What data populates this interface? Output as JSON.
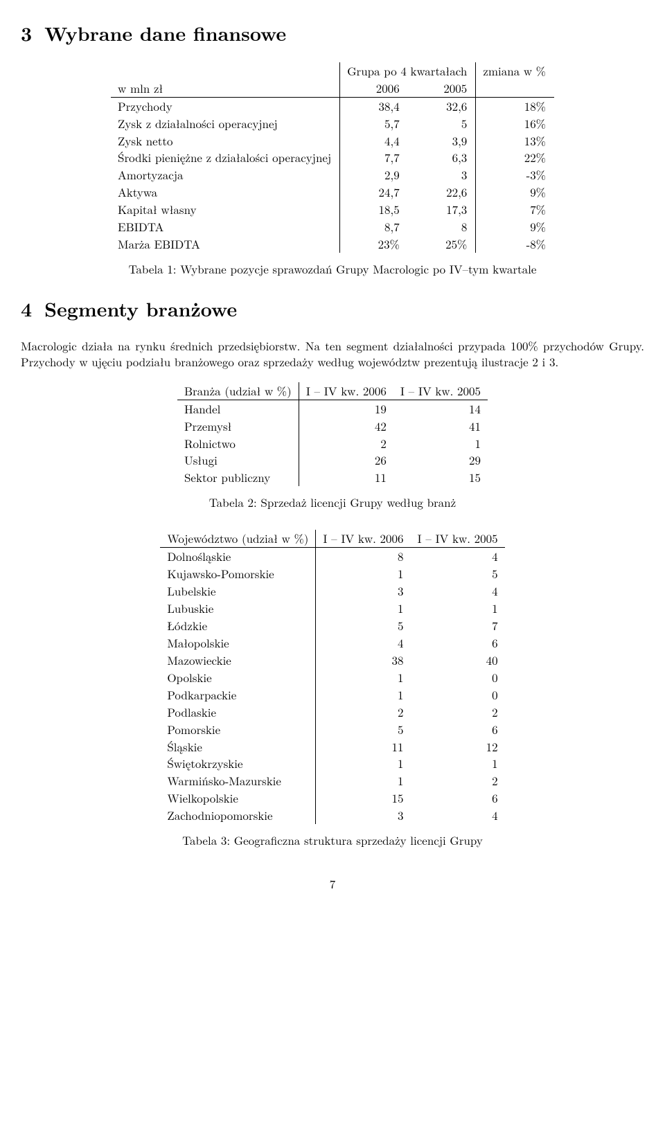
{
  "section3": {
    "number": "3",
    "title": "Wybrane dane finansowe",
    "table": {
      "header_top_left": "",
      "header_group": "Grupa po 4 kwartałach",
      "header_change": "zmiana w %",
      "header_unit": "w mln zł",
      "header_2006": "2006",
      "header_2005": "2005",
      "rows": [
        {
          "label": "Przychody",
          "v2006": "38,4",
          "v2005": "32,6",
          "chg": "18%"
        },
        {
          "label": "Zysk z działalności operacyjnej",
          "v2006": "5,7",
          "v2005": "5",
          "chg": "16%"
        },
        {
          "label": "Zysk netto",
          "v2006": "4,4",
          "v2005": "3,9",
          "chg": "13%"
        },
        {
          "label": "Środki pieniężne z działalości operacyjnej",
          "v2006": "7,7",
          "v2005": "6,3",
          "chg": "22%"
        },
        {
          "label": "Amortyzacja",
          "v2006": "2,9",
          "v2005": "3",
          "chg": "-3%"
        },
        {
          "label": "Aktywa",
          "v2006": "24,7",
          "v2005": "22,6",
          "chg": "9%"
        },
        {
          "label": "Kapitał własny",
          "v2006": "18,5",
          "v2005": "17,3",
          "chg": "7%"
        },
        {
          "label": "EBIDTA",
          "v2006": "8,7",
          "v2005": "8",
          "chg": "9%"
        },
        {
          "label": "Marża EBIDTA",
          "v2006": "23%",
          "v2005": "25%",
          "chg": "-8%"
        }
      ]
    },
    "caption": "Tabela 1: Wybrane pozycje sprawozdań Grupy Macrologic po IV–tym kwartale"
  },
  "section4": {
    "number": "4",
    "title": "Segmenty branżowe",
    "para": "Macrologic działa na rynku średnich przedsiębiorstw. Na ten segment działalności przypada 100% przychodów Grupy. Przychody w ujęciu podziału branżowego oraz sprzedaży według województw prezentują ilustracje 2 i 3.",
    "table2": {
      "header_label": "Branża (udział w %)",
      "header_2006": "I – IV kw. 2006",
      "header_2005": "I – IV kw. 2005",
      "rows": [
        {
          "label": "Handel",
          "v2006": "19",
          "v2005": "14"
        },
        {
          "label": "Przemysł",
          "v2006": "42",
          "v2005": "41"
        },
        {
          "label": "Rolnictwo",
          "v2006": "2",
          "v2005": "1"
        },
        {
          "label": "Usługi",
          "v2006": "26",
          "v2005": "29"
        },
        {
          "label": "Sektor publiczny",
          "v2006": "11",
          "v2005": "15"
        }
      ],
      "caption": "Tabela 2: Sprzedaż licencji Grupy według branż"
    },
    "table3": {
      "header_label": "Województwo (udział w %)",
      "header_2006": "I – IV kw. 2006",
      "header_2005": "I – IV kw. 2005",
      "rows": [
        {
          "label": "Dolnośląskie",
          "v2006": "8",
          "v2005": "4"
        },
        {
          "label": "Kujawsko-Pomorskie",
          "v2006": "1",
          "v2005": "5"
        },
        {
          "label": "Lubelskie",
          "v2006": "3",
          "v2005": "4"
        },
        {
          "label": "Lubuskie",
          "v2006": "1",
          "v2005": "1"
        },
        {
          "label": "Łódzkie",
          "v2006": "5",
          "v2005": "7"
        },
        {
          "label": "Małopolskie",
          "v2006": "4",
          "v2005": "6"
        },
        {
          "label": "Mazowieckie",
          "v2006": "38",
          "v2005": "40"
        },
        {
          "label": "Opolskie",
          "v2006": "1",
          "v2005": "0"
        },
        {
          "label": "Podkarpackie",
          "v2006": "1",
          "v2005": "0"
        },
        {
          "label": "Podlaskie",
          "v2006": "2",
          "v2005": "2"
        },
        {
          "label": "Pomorskie",
          "v2006": "5",
          "v2005": "6"
        },
        {
          "label": "Śląskie",
          "v2006": "11",
          "v2005": "12"
        },
        {
          "label": "Świętokrzyskie",
          "v2006": "1",
          "v2005": "1"
        },
        {
          "label": "Warmińsko-Mazurskie",
          "v2006": "1",
          "v2005": "2"
        },
        {
          "label": "Wielkopolskie",
          "v2006": "15",
          "v2005": "6"
        },
        {
          "label": "Zachodniopomorskie",
          "v2006": "3",
          "v2005": "4"
        }
      ],
      "caption": "Tabela 3: Geograficzna struktura sprzedaży licencji Grupy"
    }
  },
  "page_number": "7"
}
